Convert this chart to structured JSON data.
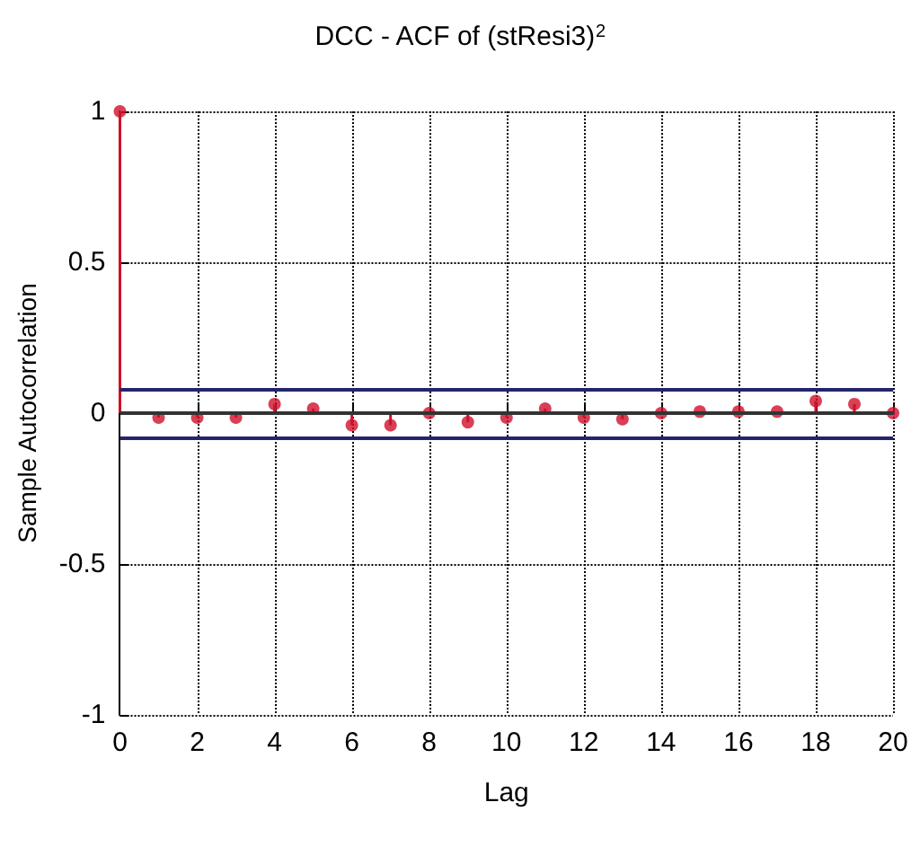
{
  "chart_data": {
    "type": "lollipop",
    "title": "DCC - ACF of (stResi3)$^{2}$",
    "xlabel": "Lag",
    "ylabel": "Sample Autocorrelation",
    "x": [
      0,
      1,
      2,
      3,
      4,
      5,
      6,
      7,
      8,
      9,
      10,
      11,
      12,
      13,
      14,
      15,
      16,
      17,
      18,
      19,
      20
    ],
    "series": [
      {
        "color": "#d0102a",
        "values": [
          1,
          -0.015,
          -0.015,
          -0.015,
          0.03,
          0.015,
          -0.04,
          -0.04,
          0,
          -0.03,
          -0.015,
          0.015,
          -0.015,
          -0.02,
          0,
          0.005,
          0.005,
          0.005,
          0.04,
          0.03,
          0
        ]
      }
    ],
    "xlim": [
      0,
      20
    ],
    "xticks": [
      0,
      2,
      4,
      6,
      8,
      10,
      12,
      14,
      16,
      18,
      20
    ],
    "ylim": [
      -1,
      1
    ],
    "yticks": [
      -1,
      -0.5,
      0,
      0.5,
      1
    ],
    "ref_lines": [
      {
        "axis": "y",
        "value": 0.08,
        "color": "#24246e"
      },
      {
        "axis": "y",
        "value": -0.08,
        "color": "#24246e"
      },
      {
        "axis": "y",
        "value": 0,
        "color": "#333333"
      }
    ],
    "grid": true,
    "marker": "circle"
  }
}
